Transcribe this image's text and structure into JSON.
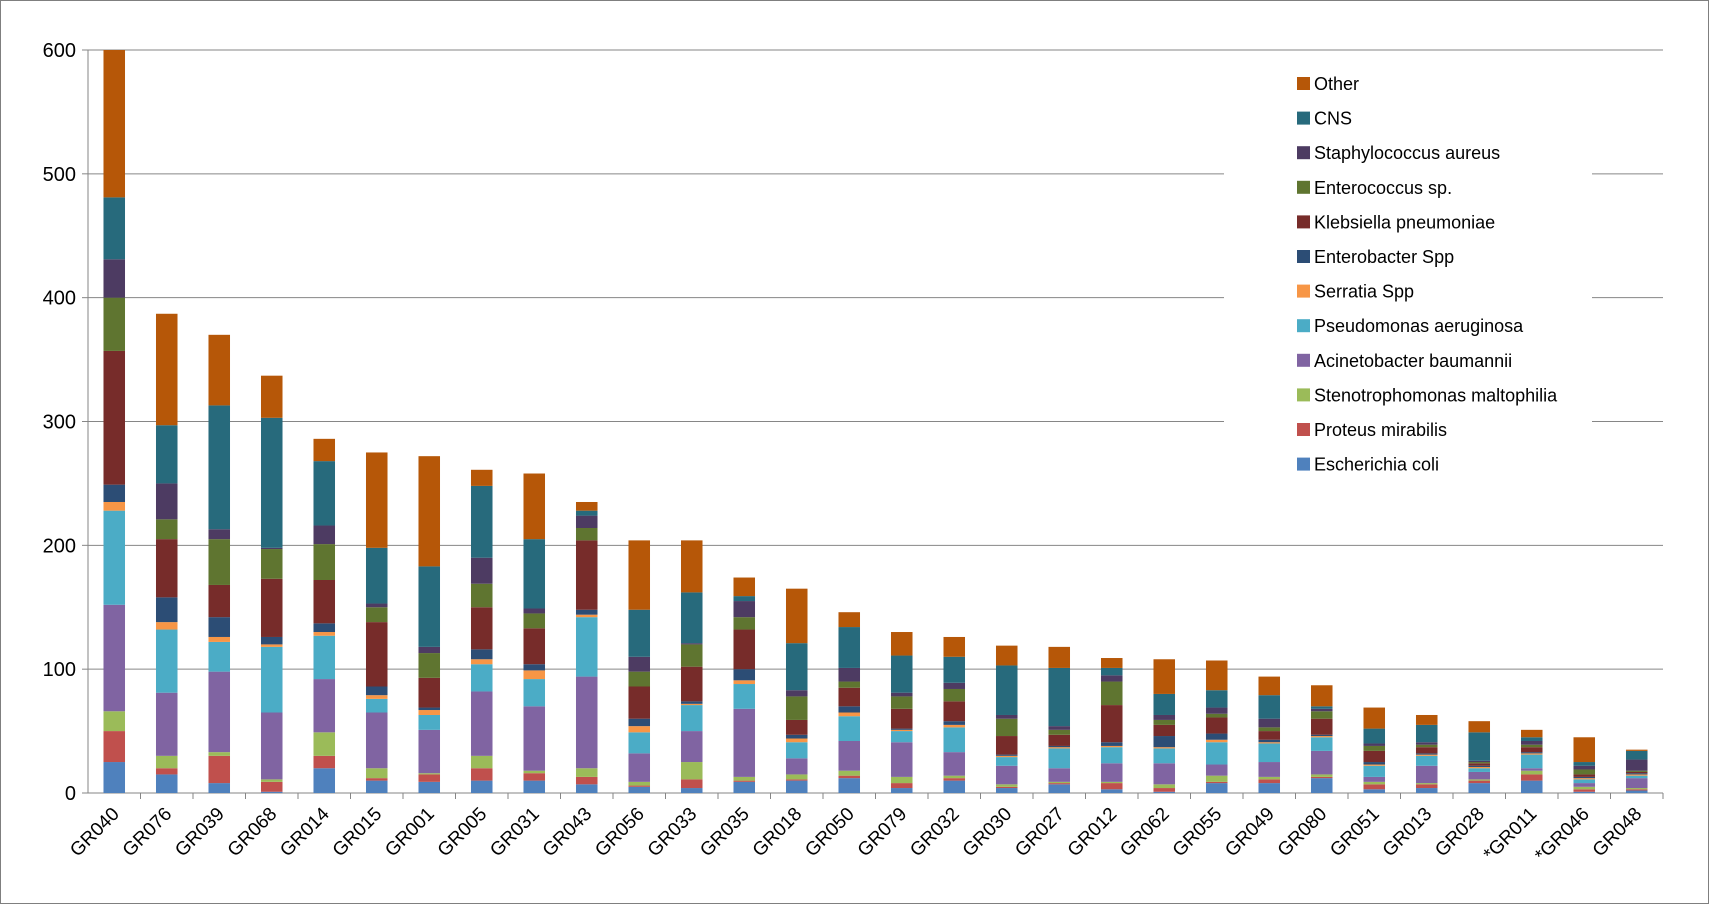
{
  "chart_data": {
    "type": "bar",
    "stacked": true,
    "title": "",
    "xlabel": "",
    "ylabel": "",
    "ylim": [
      0,
      600
    ],
    "yticks": [
      0,
      100,
      200,
      300,
      400,
      500,
      600
    ],
    "grid": "horizontal",
    "legend_position": "top-right",
    "categories": [
      "GR040",
      "GR076",
      "GR039",
      "GR068",
      "GR014",
      "GR015",
      "GR001",
      "GR005",
      "GR031",
      "GR043",
      "GR056",
      "GR033",
      "GR035",
      "GR018",
      "GR050",
      "GR079",
      "GR032",
      "GR030",
      "GR027",
      "GR012",
      "GR062",
      "GR055",
      "GR049",
      "GR080",
      "GR051",
      "GR013",
      "GR028",
      "*GR011",
      "*GR046",
      "GR048"
    ],
    "series": [
      {
        "name": "Escherichia coli",
        "color": "#4f81bd",
        "values": [
          25,
          15,
          8,
          1,
          20,
          10,
          9,
          10,
          10,
          7,
          5,
          4,
          9,
          10,
          12,
          4,
          10,
          4,
          7,
          3,
          1,
          8,
          8,
          12,
          3,
          4,
          8,
          10,
          1,
          2
        ]
      },
      {
        "name": "Proteus mirabilis",
        "color": "#c0504d",
        "values": [
          25,
          5,
          22,
          8,
          10,
          2,
          6,
          10,
          6,
          6,
          1,
          7,
          1,
          1,
          2,
          4,
          2,
          1,
          1,
          5,
          3,
          1,
          3,
          1,
          4,
          3,
          2,
          5,
          2,
          1
        ]
      },
      {
        "name": "Stenotrophomonas maltophilia",
        "color": "#9bbb59",
        "values": [
          16,
          10,
          3,
          2,
          19,
          8,
          1,
          10,
          2,
          7,
          3,
          14,
          3,
          4,
          4,
          5,
          2,
          2,
          1,
          1,
          3,
          5,
          2,
          2,
          2,
          1,
          1,
          3,
          2,
          1
        ]
      },
      {
        "name": "Acinetobacter baumannii",
        "color": "#8064a2",
        "values": [
          86,
          51,
          65,
          54,
          43,
          45,
          35,
          52,
          52,
          74,
          23,
          25,
          55,
          13,
          24,
          28,
          19,
          15,
          11,
          15,
          17,
          9,
          12,
          19,
          4,
          14,
          6,
          2,
          3,
          8
        ]
      },
      {
        "name": "Pseudomonas aeruginosa",
        "color": "#4bacc6",
        "values": [
          76,
          51,
          24,
          53,
          35,
          11,
          12,
          22,
          22,
          48,
          17,
          21,
          20,
          13,
          20,
          9,
          20,
          7,
          16,
          13,
          12,
          18,
          15,
          11,
          9,
          8,
          3,
          11,
          3,
          2
        ]
      },
      {
        "name": "Serratia Spp",
        "color": "#f79646",
        "values": [
          7,
          6,
          4,
          2,
          3,
          3,
          4,
          4,
          7,
          2,
          5,
          1,
          3,
          3,
          3,
          1,
          2,
          1,
          1,
          1,
          1,
          2,
          1,
          1,
          1,
          1,
          1,
          1,
          1,
          1
        ]
      },
      {
        "name": "Enterobacter Spp",
        "color": "#2c4d75",
        "values": [
          14,
          20,
          16,
          6,
          7,
          7,
          2,
          8,
          5,
          4,
          6,
          2,
          9,
          3,
          5,
          1,
          3,
          1,
          1,
          3,
          9,
          5,
          2,
          1,
          2,
          1,
          1,
          1,
          1,
          1
        ]
      },
      {
        "name": "Klebsiella pneumoniae",
        "color": "#772c2a",
        "values": [
          108,
          47,
          26,
          47,
          35,
          52,
          24,
          34,
          29,
          56,
          26,
          28,
          32,
          12,
          15,
          16,
          16,
          15,
          9,
          30,
          9,
          13,
          7,
          13,
          9,
          5,
          2,
          4,
          2,
          1
        ]
      },
      {
        "name": "Enterococcus sp.",
        "color": "#5f7530",
        "values": [
          43,
          16,
          37,
          24,
          29,
          12,
          20,
          19,
          12,
          10,
          12,
          18,
          10,
          19,
          5,
          10,
          10,
          14,
          4,
          19,
          4,
          3,
          3,
          6,
          4,
          2,
          1,
          2,
          4,
          1
        ]
      },
      {
        "name": "Staphylococcus aureus",
        "color": "#4d3b62",
        "values": [
          31,
          29,
          8,
          1,
          15,
          3,
          5,
          21,
          4,
          10,
          12,
          1,
          13,
          5,
          11,
          3,
          5,
          3,
          3,
          5,
          4,
          5,
          7,
          2,
          2,
          2,
          1,
          3,
          3,
          9
        ]
      },
      {
        "name": "CNS",
        "color": "#276a7c",
        "values": [
          50,
          47,
          100,
          105,
          52,
          45,
          65,
          58,
          56,
          4,
          38,
          41,
          4,
          38,
          33,
          30,
          21,
          40,
          47,
          6,
          17,
          14,
          19,
          2,
          12,
          14,
          23,
          3,
          3,
          7
        ]
      },
      {
        "name": "Other",
        "color": "#b65708",
        "values": [
          119,
          90,
          57,
          34,
          18,
          77,
          89,
          13,
          53,
          7,
          56,
          42,
          15,
          44,
          12,
          19,
          16,
          16,
          17,
          8,
          28,
          24,
          15,
          17,
          17,
          8,
          9,
          6,
          20,
          1
        ]
      }
    ]
  }
}
